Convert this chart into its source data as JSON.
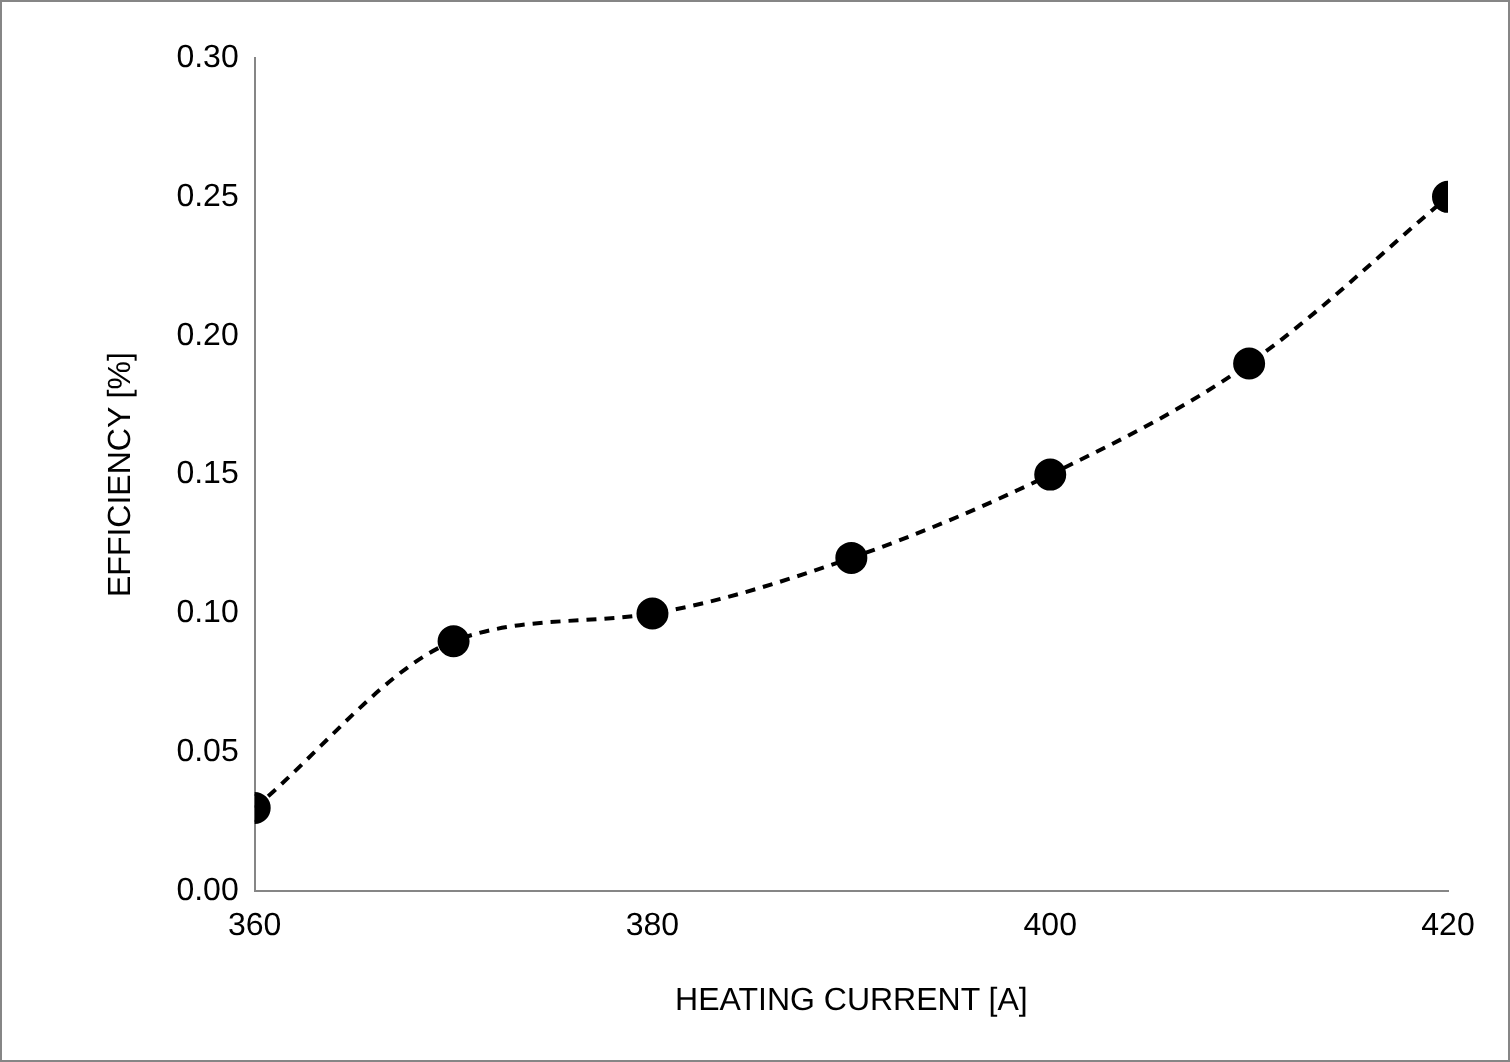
{
  "chart_data": {
    "type": "line",
    "xlabel": "HEATING CURRENT [A]",
    "ylabel": "EFFICIENCY [%]",
    "x": [
      360,
      370,
      380,
      390,
      400,
      410,
      420
    ],
    "series": [
      {
        "color": "#000000",
        "values": [
          0.03,
          0.09,
          0.1,
          0.12,
          0.15,
          0.19,
          0.25
        ]
      }
    ],
    "xlim": [
      360,
      420
    ],
    "xticks": [
      360,
      380,
      400,
      420
    ],
    "ylim": [
      0,
      0.3
    ],
    "yticks": [
      {
        "value": 0,
        "label": "0.00"
      },
      {
        "value": 0.05,
        "label": "0.05"
      },
      {
        "value": 0.1,
        "label": "0.10"
      },
      {
        "value": 0.15,
        "label": "0.15"
      },
      {
        "value": 0.2,
        "label": "0.20"
      },
      {
        "value": 0.25,
        "label": "0.25"
      },
      {
        "value": 0.3,
        "label": "0.30"
      }
    ],
    "grid": false,
    "legend": false,
    "marker": "circle",
    "line_style": "dashed"
  }
}
